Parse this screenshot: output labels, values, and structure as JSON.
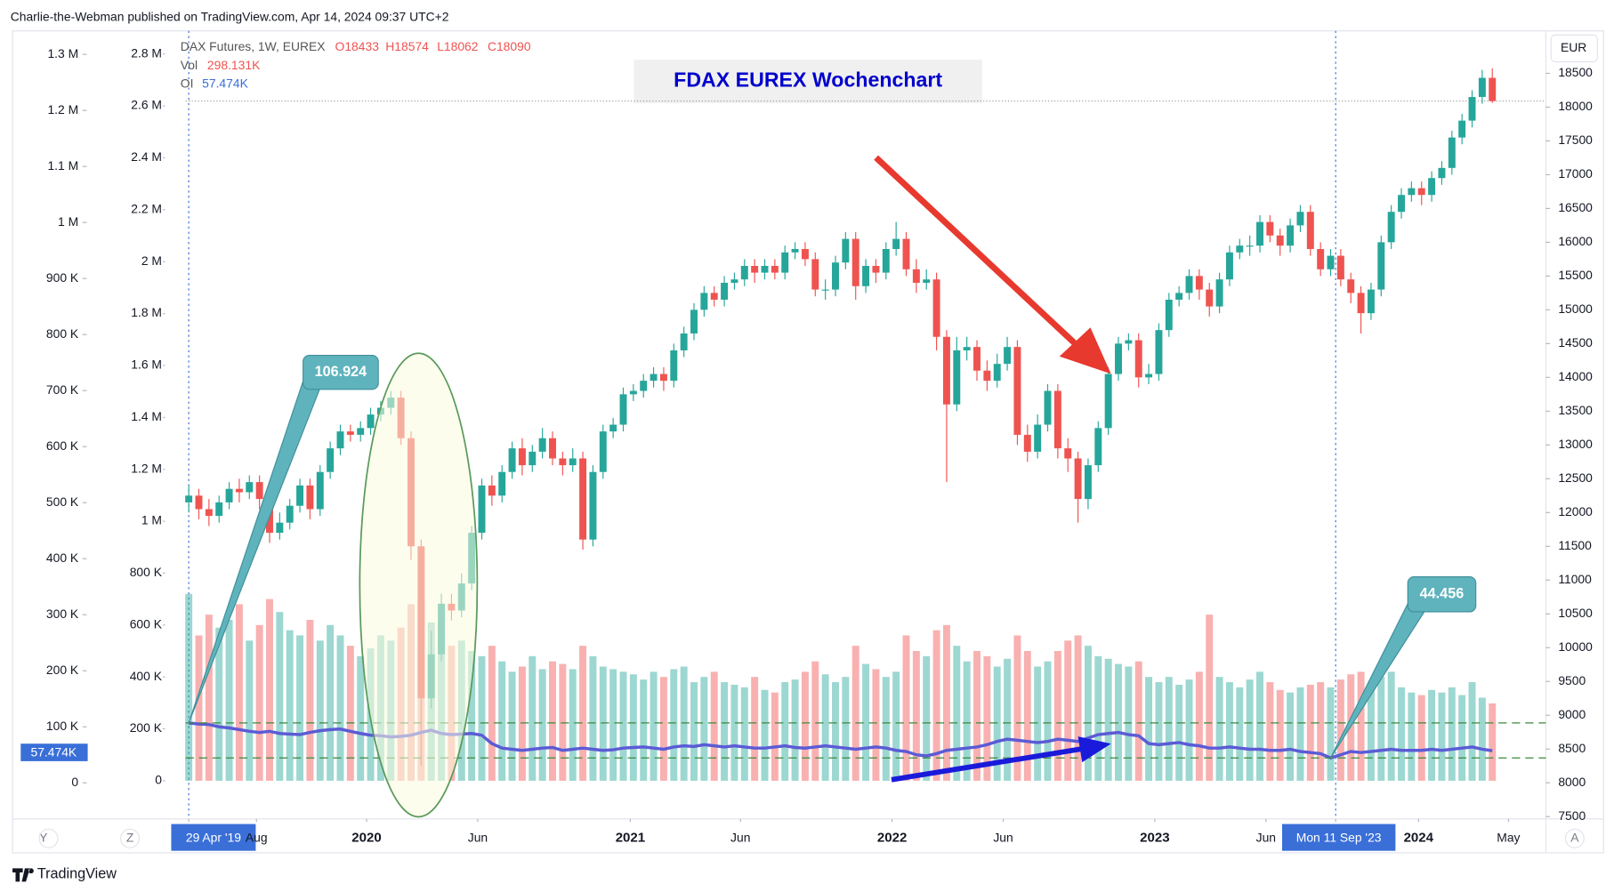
{
  "header": "Charlie-the-Webman published on TradingView.com, Apr 14, 2024 09:37 UTC+2",
  "footer": "TradingView",
  "buttons": [
    "Y",
    "Z",
    "A"
  ],
  "currency": "EUR",
  "legend": {
    "symbol": "DAX Futures, 1W, EUREX",
    "open": "O18433",
    "high": "H18574",
    "low": "L18062",
    "close": "C18090",
    "vol_label": "Vol",
    "vol": "298.131K",
    "oi_label": "OI",
    "oi": "57.474K"
  },
  "chart_data": {
    "type": "candlestick",
    "title": "FDAX EUREX Wochenchart",
    "xlim": [
      -2.35,
      134.3
    ],
    "xticks": [
      {
        "value": 0,
        "label": "29 Apr '19",
        "highlight": true
      },
      {
        "value": 6.7,
        "label": "Aug"
      },
      {
        "value": 17.6,
        "label": "2020"
      },
      {
        "value": 28.6,
        "label": "Jun"
      },
      {
        "value": 43.7,
        "label": "2021"
      },
      {
        "value": 54.6,
        "label": "Jun"
      },
      {
        "value": 69.6,
        "label": "2022"
      },
      {
        "value": 80.6,
        "label": "Jun"
      },
      {
        "value": 95.6,
        "label": "2023"
      },
      {
        "value": 106.6,
        "label": "Jun"
      },
      {
        "value": 113.5,
        "label": "Mon 11 Sep '23",
        "highlight": true
      },
      {
        "value": 121.7,
        "label": "2024"
      },
      {
        "value": 130.6,
        "label": "May"
      }
    ],
    "ylim": [
      7466,
      19128
    ],
    "yticks": [
      7500,
      8000,
      8500,
      9000,
      9500,
      10000,
      10500,
      11000,
      11500,
      12000,
      12500,
      13000,
      13500,
      14000,
      14500,
      15000,
      15500,
      16000,
      16500,
      17000,
      17500,
      18000,
      18500
    ],
    "y2lim": [
      -146800,
      2889000
    ],
    "y2ticks": [
      0,
      {
        "value": 200000,
        "label": "200 K"
      },
      {
        "value": 400000,
        "label": "400 K"
      },
      {
        "value": 600000,
        "label": "600 K"
      },
      {
        "value": 800000,
        "label": "800 K"
      },
      {
        "value": 1000000,
        "label": "1 M"
      },
      {
        "value": 1200000,
        "label": "1.2 M"
      },
      {
        "value": 1400000,
        "label": "1.4 M"
      },
      {
        "value": 1600000,
        "label": "1.6 M"
      },
      {
        "value": 1800000,
        "label": "1.8 M"
      },
      {
        "value": 2000000,
        "label": "2 M"
      },
      {
        "value": 2200000,
        "label": "2.2 M"
      },
      {
        "value": 2400000,
        "label": "2.4 M"
      },
      {
        "value": 2600000,
        "label": "2.6 M"
      },
      {
        "value": 2800000,
        "label": "2.8 M"
      }
    ],
    "y3lim": [
      -64300,
      1341900
    ],
    "y3ticks": [
      0,
      {
        "value": 100000,
        "label": "100 K"
      },
      {
        "value": 200000,
        "label": "200 K"
      },
      {
        "value": 300000,
        "label": "300 K"
      },
      {
        "value": 400000,
        "label": "400 K"
      },
      {
        "value": 500000,
        "label": "500 K"
      },
      {
        "value": 600000,
        "label": "600 K"
      },
      {
        "value": 700000,
        "label": "700 K"
      },
      {
        "value": 800000,
        "label": "800 K"
      },
      {
        "value": 900000,
        "label": "900 K"
      },
      {
        "value": 1000000,
        "label": "1 M"
      },
      {
        "value": 1100000,
        "label": "1.1 M"
      },
      {
        "value": 1200000,
        "label": "1.2 M"
      },
      {
        "value": 1300000,
        "label": "1.3 M"
      }
    ],
    "up_color": "#26a69a",
    "down_color": "#ef5350",
    "open": [
      12150,
      12250,
      12050,
      11950,
      12150,
      12350,
      12300,
      12450,
      12200,
      11700,
      11850,
      12100,
      12400,
      12050,
      12600,
      12950,
      13200,
      13150,
      13250,
      13450,
      13550,
      13700,
      13100,
      11500,
      9250,
      9900,
      10650,
      10550,
      10950,
      11700,
      12400,
      12250,
      12600,
      12950,
      12700,
      12900,
      13100,
      12800,
      12700,
      12800,
      11600,
      12600,
      13200,
      13300,
      13750,
      13800,
      13950,
      14050,
      13950,
      14400,
      14650,
      15000,
      15250,
      15150,
      15400,
      15450,
      15650,
      15550,
      15650,
      15550,
      15850,
      15900,
      15750,
      15300,
      15300,
      15700,
      16050,
      15350,
      15650,
      15550,
      15900,
      16050,
      15600,
      15400,
      15450,
      14600,
      13600,
      14400,
      14450,
      14100,
      13950,
      14200,
      14450,
      13150,
      12900,
      13300,
      13800,
      12950,
      12800,
      12200,
      12700,
      13250,
      14050,
      14500,
      14550,
      14000,
      14050,
      14700,
      15150,
      15250,
      15500,
      15300,
      15050,
      15450,
      15850,
      15950,
      15950,
      16300,
      16100,
      15950,
      16250,
      16450,
      15900,
      15600,
      15800,
      15450,
      15250,
      14950,
      15300,
      16000,
      16450,
      16700,
      16800,
      16700,
      16950,
      17100,
      17550,
      17800,
      18150,
      18433
    ],
    "high": [
      12400,
      12350,
      12200,
      12250,
      12450,
      12500,
      12550,
      12550,
      12300,
      12000,
      12200,
      12500,
      12500,
      12700,
      13050,
      13300,
      13300,
      13350,
      13550,
      13650,
      13800,
      13800,
      13200,
      11600,
      10250,
      10800,
      10800,
      11100,
      11800,
      12500,
      12550,
      12700,
      13050,
      13100,
      13000,
      13250,
      13200,
      12900,
      12950,
      12900,
      12700,
      13300,
      13400,
      13850,
      13900,
      14050,
      14150,
      14150,
      14500,
      14750,
      15100,
      15350,
      15350,
      15500,
      15550,
      15750,
      15750,
      15750,
      15750,
      15950,
      16000,
      16000,
      15850,
      15450,
      15800,
      16150,
      16150,
      15750,
      15750,
      16000,
      16300,
      16150,
      15750,
      15600,
      15550,
      14700,
      14600,
      14600,
      14550,
      14250,
      14350,
      14600,
      14550,
      13300,
      13450,
      13900,
      13900,
      13100,
      12900,
      12800,
      13350,
      14150,
      14600,
      14650,
      14650,
      14200,
      14800,
      15250,
      15350,
      15600,
      15600,
      15400,
      15550,
      15950,
      16050,
      16100,
      16400,
      16400,
      16200,
      16350,
      16550,
      16550,
      16000,
      15900,
      15900,
      15550,
      15350,
      15400,
      16100,
      16550,
      16800,
      16900,
      16900,
      17050,
      17200,
      17650,
      17900,
      18250,
      18550,
      18574
    ],
    "low": [
      12000,
      11900,
      11800,
      11850,
      12050,
      12150,
      12200,
      12050,
      11550,
      11600,
      11750,
      12000,
      11900,
      11950,
      12500,
      12850,
      13050,
      13050,
      13150,
      13350,
      13450,
      13000,
      11300,
      8250,
      9100,
      9800,
      10400,
      10450,
      10850,
      11600,
      12100,
      12150,
      12500,
      12550,
      12600,
      12800,
      12700,
      12550,
      12600,
      11450,
      11500,
      12500,
      13100,
      13200,
      13650,
      13700,
      13850,
      13800,
      13850,
      14300,
      14550,
      14900,
      15050,
      15050,
      15300,
      15350,
      15400,
      15450,
      15450,
      15450,
      15750,
      15650,
      15200,
      15150,
      15200,
      15600,
      15150,
      15250,
      15400,
      15450,
      15800,
      15500,
      15250,
      15300,
      14400,
      12450,
      13500,
      14250,
      13950,
      13800,
      13850,
      14100,
      13000,
      12750,
      12800,
      13200,
      12800,
      12600,
      11850,
      12050,
      12600,
      13150,
      13950,
      14400,
      13850,
      13900,
      13950,
      14600,
      15050,
      15150,
      15150,
      14900,
      14950,
      15350,
      15750,
      15800,
      15850,
      16000,
      15800,
      15850,
      16150,
      15800,
      15500,
      15500,
      15350,
      15100,
      14650,
      14850,
      15200,
      15900,
      16350,
      16600,
      16550,
      16600,
      16850,
      17000,
      17450,
      17700,
      18050,
      18062
    ],
    "close": [
      12250,
      12050,
      11950,
      12150,
      12350,
      12300,
      12450,
      12200,
      11700,
      11850,
      12100,
      12400,
      12050,
      12600,
      12950,
      13200,
      13150,
      13250,
      13450,
      13550,
      13700,
      13100,
      11500,
      9250,
      9900,
      10650,
      10550,
      10950,
      11700,
      12400,
      12250,
      12600,
      12950,
      12700,
      12900,
      13100,
      12800,
      12700,
      12800,
      11600,
      12600,
      13200,
      13300,
      13750,
      13800,
      13950,
      14050,
      13950,
      14400,
      14650,
      15000,
      15250,
      15150,
      15400,
      15450,
      15650,
      15550,
      15650,
      15550,
      15850,
      15900,
      15750,
      15300,
      15300,
      15700,
      16050,
      15350,
      15650,
      15550,
      15900,
      16050,
      15600,
      15400,
      15450,
      14600,
      13600,
      14400,
      14450,
      14100,
      13950,
      14200,
      14450,
      13150,
      12900,
      13300,
      13800,
      12950,
      12800,
      12200,
      12700,
      13250,
      14050,
      14500,
      14550,
      14000,
      14050,
      14700,
      15150,
      15250,
      15500,
      15300,
      15050,
      15450,
      15850,
      15950,
      15950,
      16300,
      16100,
      15950,
      16250,
      16450,
      15900,
      15600,
      15800,
      15450,
      15250,
      14950,
      15300,
      16000,
      16450,
      16700,
      16800,
      16700,
      16950,
      17100,
      17550,
      17800,
      18150,
      18433,
      18090
    ],
    "series": [
      {
        "name": "Vol",
        "axis": "y2",
        "values": [
          720000,
          560000,
          640000,
          590000,
          620000,
          680000,
          540000,
          600000,
          700000,
          650000,
          580000,
          560000,
          620000,
          540000,
          600000,
          560000,
          520000,
          480000,
          510000,
          560000,
          540000,
          590000,
          680000,
          700000,
          610000,
          560000,
          520000,
          540000,
          500000,
          480000,
          520000,
          460000,
          420000,
          440000,
          480000,
          430000,
          460000,
          450000,
          430000,
          520000,
          480000,
          440000,
          430000,
          420000,
          410000,
          390000,
          420000,
          400000,
          430000,
          440000,
          380000,
          400000,
          420000,
          380000,
          370000,
          360000,
          400000,
          350000,
          340000,
          380000,
          390000,
          420000,
          460000,
          410000,
          380000,
          400000,
          520000,
          450000,
          430000,
          400000,
          420000,
          560000,
          500000,
          480000,
          580000,
          600000,
          520000,
          460000,
          500000,
          480000,
          440000,
          470000,
          560000,
          500000,
          440000,
          460000,
          500000,
          540000,
          560000,
          520000,
          480000,
          470000,
          450000,
          440000,
          460000,
          400000,
          380000,
          400000,
          370000,
          390000,
          420000,
          640000,
          400000,
          380000,
          360000,
          390000,
          420000,
          380000,
          350000,
          340000,
          360000,
          370000,
          380000,
          360000,
          390000,
          410000,
          420000,
          380000,
          400000,
          420000,
          360000,
          340000,
          330000,
          350000,
          340000,
          360000,
          330000,
          380000,
          320000,
          298131
        ]
      },
      {
        "name": "OI",
        "axis": "y3",
        "color": "#5b5bd6",
        "values": [
          106924,
          105000,
          104000,
          100000,
          98000,
          95000,
          92000,
          90000,
          92000,
          88000,
          87000,
          86000,
          90000,
          93000,
          95000,
          96000,
          92000,
          88000,
          85000,
          84000,
          82000,
          83000,
          85000,
          90000,
          94000,
          88000,
          86000,
          87000,
          88000,
          85000,
          70000,
          62000,
          60000,
          58000,
          60000,
          62000,
          63000,
          58000,
          60000,
          62000,
          60000,
          58000,
          59000,
          62000,
          63000,
          64000,
          62000,
          60000,
          64000,
          66000,
          65000,
          68000,
          66000,
          64000,
          66000,
          64000,
          62000,
          62000,
          64000,
          66000,
          63000,
          62000,
          64000,
          66000,
          64000,
          62000,
          60000,
          62000,
          64000,
          62000,
          58000,
          56000,
          50000,
          48000,
          52000,
          58000,
          60000,
          62000,
          64000,
          68000,
          74000,
          78000,
          76000,
          74000,
          72000,
          74000,
          78000,
          76000,
          74000,
          80000,
          86000,
          88000,
          90000,
          86000,
          84000,
          70000,
          68000,
          70000,
          72000,
          68000,
          66000,
          62000,
          62000,
          64000,
          62000,
          60000,
          60000,
          58000,
          58000,
          60000,
          56000,
          54000,
          52000,
          44456,
          50000,
          56000,
          54000,
          56000,
          58000,
          60000,
          58000,
          58000,
          58000,
          60000,
          58000,
          60000,
          62000,
          64000,
          60000,
          57474
        ]
      }
    ],
    "annotations": [
      {
        "x": 0,
        "value": 106924,
        "label": "106.924"
      },
      {
        "x": 113,
        "value": 44456,
        "label": "44.456"
      }
    ],
    "last_price": 18090
  }
}
